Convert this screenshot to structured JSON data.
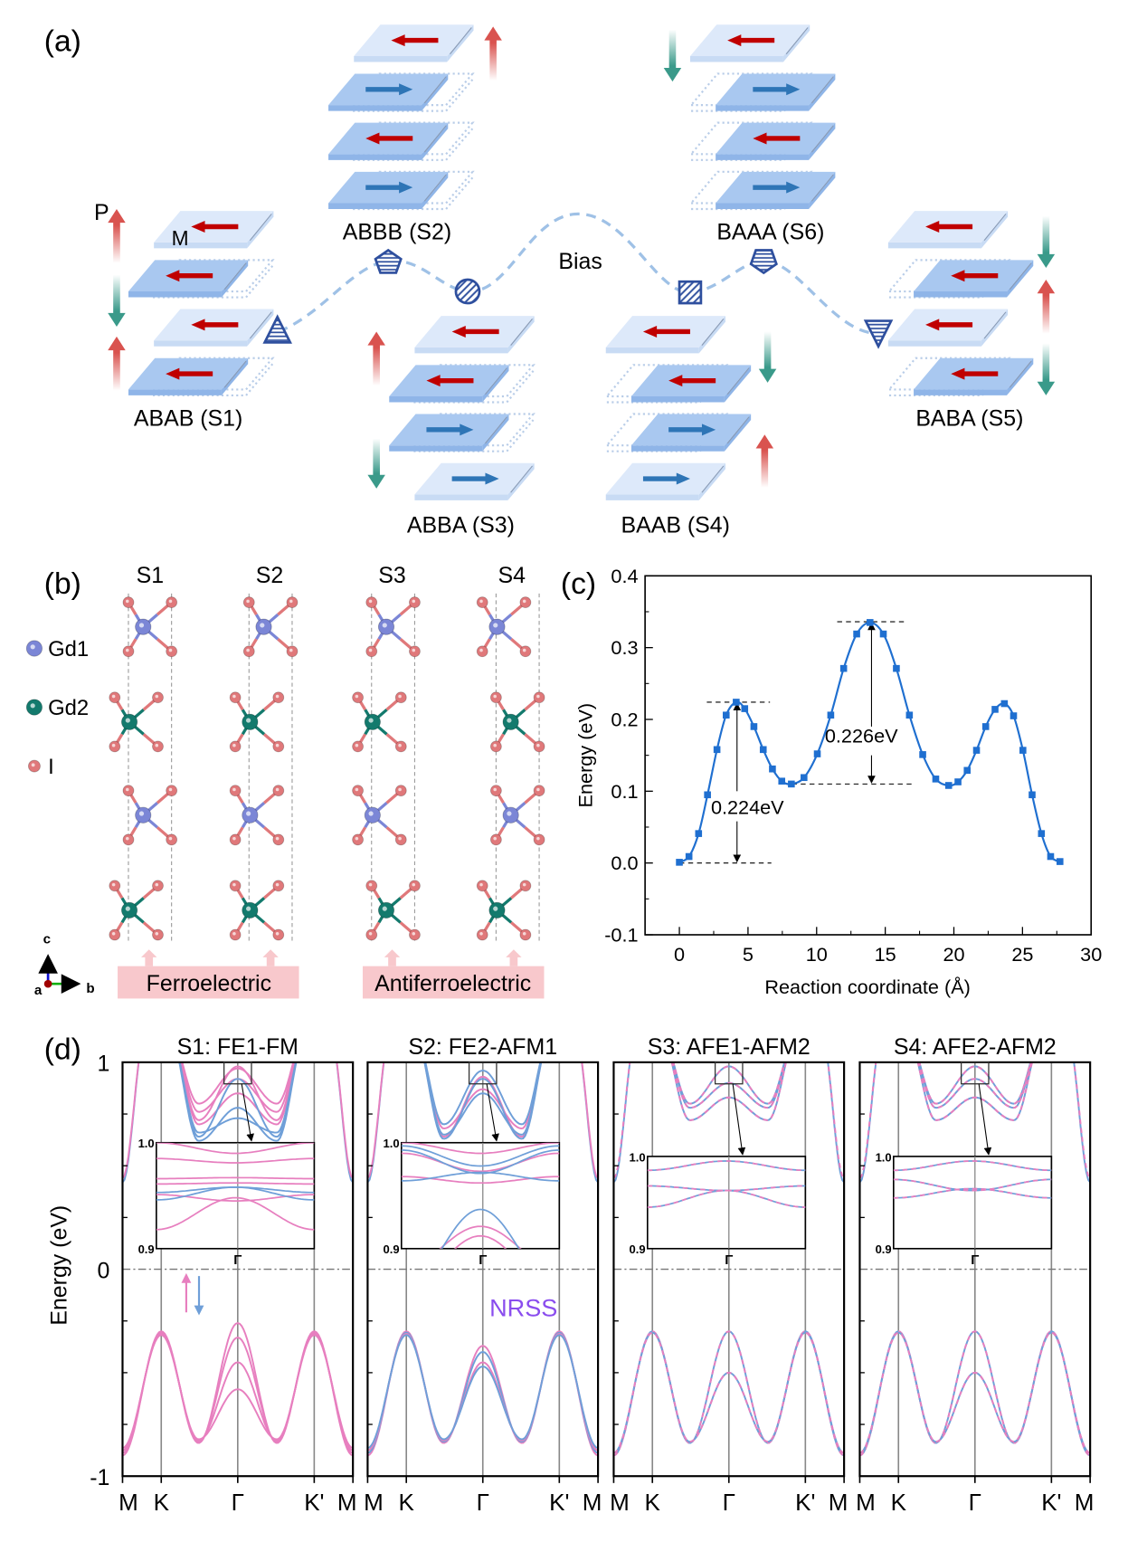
{
  "panel_labels": {
    "a": "(a)",
    "b": "(b)",
    "c": "(c)",
    "d": "(d)"
  },
  "panel_a": {
    "p_label": "P",
    "m_label": "M",
    "bias_label": "Bias",
    "states": [
      "ABAB (S1)",
      "ABBB (S2)",
      "ABBA (S3)",
      "BAAB (S4)",
      "BABA (S5)",
      "BAAA (S6)"
    ],
    "colors": {
      "magnetization_left": "#c00000",
      "magnetization_right": "#2e75b6",
      "polarization_up": "#d9534f",
      "polarization_down": "#3a9a8a",
      "path": "#9fc1e6",
      "marker": "#2e4f9e"
    }
  },
  "panel_b": {
    "columns": [
      "S1",
      "S2",
      "S3",
      "S4"
    ],
    "legend": [
      {
        "label": "Gd1",
        "color": "#7b86d6"
      },
      {
        "label": "Gd2",
        "color": "#137a6d"
      },
      {
        "label": "I",
        "color": "#e0787a"
      }
    ],
    "axes": {
      "c": "c",
      "a": "a",
      "b": "b"
    },
    "groups": [
      "Ferroelectric",
      "Antiferroelectric"
    ]
  },
  "chart_data": [
    {
      "type": "line",
      "title": "",
      "xlabel": "Reaction coordinate (Å)",
      "ylabel": "Energy (eV)",
      "xlim": [
        -2.5,
        30
      ],
      "ylim": [
        -0.1,
        0.4
      ],
      "xticks": [
        "0",
        "5",
        "10",
        "15",
        "20",
        "25",
        "30"
      ],
      "yticks": [
        "-0.1",
        "0.0",
        "0.1",
        "0.2",
        "0.3",
        "0.4"
      ],
      "grid": false,
      "color": "#1f6fd0",
      "x": [
        0,
        0.7,
        1.4,
        2.05,
        2.74,
        3.41,
        4.14,
        4.76,
        5.43,
        6.11,
        6.78,
        7.46,
        8.16,
        9.08,
        10.05,
        11.03,
        11.97,
        12.92,
        13.89,
        14.86,
        15.81,
        16.76,
        17.73,
        18.68,
        19.62,
        20.3,
        20.97,
        21.65,
        22.32,
        23.0,
        23.68,
        24.35,
        25.03,
        25.7,
        26.38,
        27.05,
        27.73
      ],
      "y": [
        0.001,
        0.009,
        0.041,
        0.095,
        0.158,
        0.206,
        0.224,
        0.215,
        0.19,
        0.158,
        0.131,
        0.114,
        0.11,
        0.119,
        0.152,
        0.206,
        0.271,
        0.319,
        0.335,
        0.319,
        0.271,
        0.206,
        0.151,
        0.117,
        0.108,
        0.113,
        0.129,
        0.157,
        0.19,
        0.214,
        0.222,
        0.205,
        0.157,
        0.095,
        0.041,
        0.009,
        0.002
      ],
      "annotations": [
        "0.224eV",
        "0.226eV"
      ]
    },
    {
      "type": "line",
      "ylabel": "Energy (eV)",
      "ylim": [
        -1,
        1
      ],
      "yticks": [
        "1",
        "0",
        "-1"
      ],
      "kpath": [
        "M",
        "K",
        "Γ",
        "K'",
        "M"
      ],
      "inset_yticks": [
        "1.0",
        "0.9"
      ],
      "inset_xtick": "Γ",
      "spin_colors": {
        "up": "#e77fbf",
        "down": "#6f9fd8"
      },
      "nrss_label": "NRSS",
      "nrss_color": "#8a4dee",
      "panels": [
        {
          "title": "S1: FE1-FM",
          "valence_gamma_eV": [
            -0.26,
            -0.33,
            -0.45,
            -0.58
          ]
        },
        {
          "title": "S2: FE2-AFM1",
          "valence_gamma_eV": [
            -0.37,
            -0.4,
            -0.45,
            -0.47
          ]
        },
        {
          "title": "S3: AFE1-AFM2",
          "valence_gamma_eV": [
            -0.3,
            -0.5
          ]
        },
        {
          "title": "S4: AFE2-AFM2",
          "valence_gamma_eV": [
            -0.3,
            -0.5
          ]
        }
      ]
    }
  ]
}
